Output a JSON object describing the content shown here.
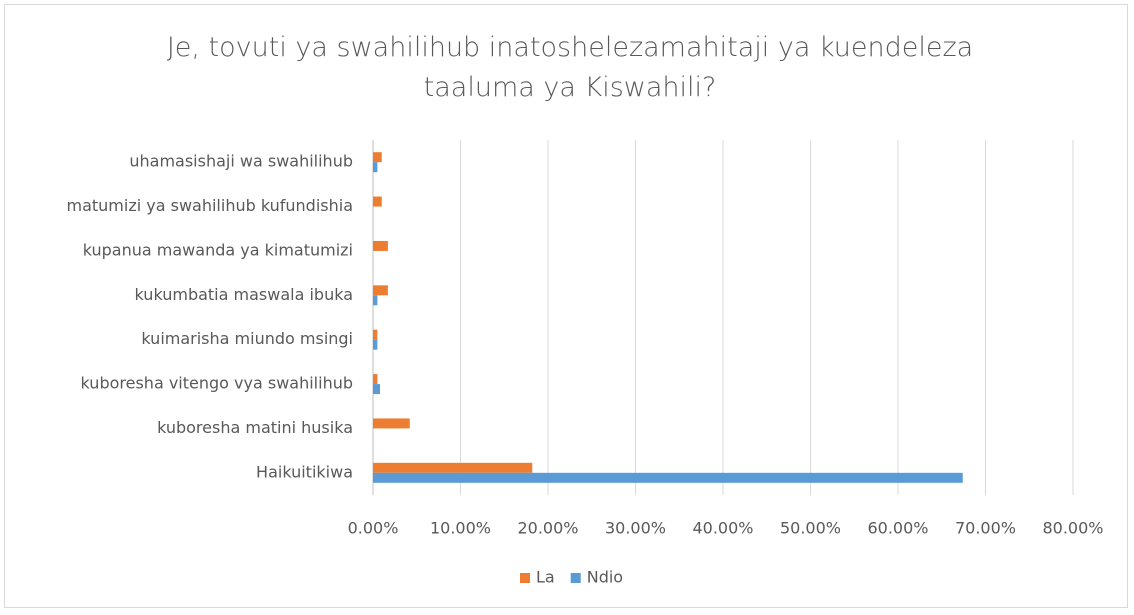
{
  "chart_data": {
    "type": "barh",
    "title": "Je, tovuti ya swahilihub inatoshelezamahitaji ya kuendeleza taaluma ya Kiswahili?",
    "categories": [
      "uhamasishaji wa swahilihub",
      "matumizi ya swahilihub kufundishia",
      "kupanua mawanda ya kimatumizi",
      "kukumbatia maswala ibuka",
      "kuimarisha miundo msingi",
      "kuboresha vitengo vya swahilihub",
      "kuboresha matini husika",
      "Haikuitikiwa"
    ],
    "series": [
      {
        "name": "La",
        "color": "#ed7d31",
        "values": [
          1.0,
          1.0,
          1.7,
          1.7,
          0.5,
          0.5,
          4.2,
          18.2
        ]
      },
      {
        "name": "Ndio",
        "color": "#5b9bd5",
        "values": [
          0.5,
          0,
          0,
          0.5,
          0.5,
          0.8,
          0,
          67.4
        ]
      }
    ],
    "xlim": [
      0,
      80
    ],
    "xticks": [
      {
        "value": 0,
        "label": "0.00%"
      },
      {
        "value": 10,
        "label": "10.00%"
      },
      {
        "value": 20,
        "label": "20.00%"
      },
      {
        "value": 30,
        "label": "30.00%"
      },
      {
        "value": 40,
        "label": "40.00%"
      },
      {
        "value": 50,
        "label": "50.00%"
      },
      {
        "value": 60,
        "label": "60.00%"
      },
      {
        "value": 70,
        "label": "70.00%"
      },
      {
        "value": 80,
        "label": "80.00%"
      }
    ],
    "grid": true,
    "legend": "bottom"
  }
}
